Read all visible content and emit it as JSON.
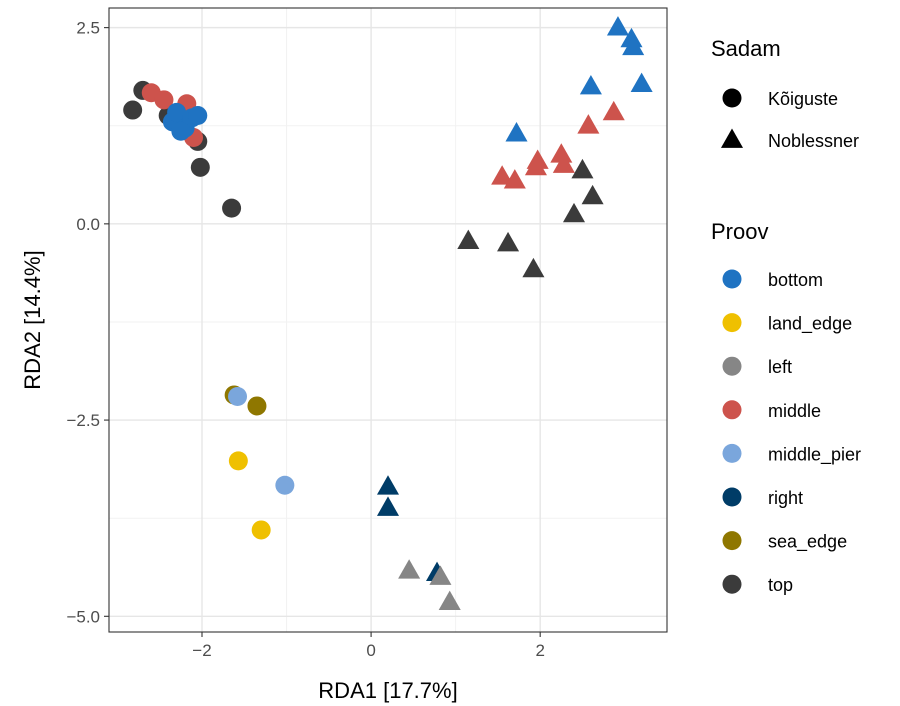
{
  "chart_data": {
    "type": "scatter",
    "xlabel": "RDA1   [17.7%]",
    "ylabel": "RDA2   [14.4%]",
    "xlim": [
      -3.1,
      3.5
    ],
    "ylim": [
      -5.2,
      2.75
    ],
    "x_ticks": [
      {
        "value": -2,
        "label": "−2"
      },
      {
        "value": 0,
        "label": "0"
      },
      {
        "value": 2,
        "label": "2"
      }
    ],
    "y_ticks": [
      {
        "value": 2.5,
        "label": "2.5"
      },
      {
        "value": 0,
        "label": "0.0"
      },
      {
        "value": -2.5,
        "label": "−2.5"
      },
      {
        "value": -5,
        "label": "−5.0"
      }
    ],
    "grid": true,
    "legend_placement": "right",
    "legends": {
      "shape": {
        "title": "Sadam",
        "items": [
          {
            "label": "Kõiguste",
            "shape": "circle"
          },
          {
            "label": "Noblessner",
            "shape": "triangle"
          }
        ]
      },
      "color": {
        "title": "Proov",
        "items": [
          {
            "label": "bottom",
            "color": "#1f73c2"
          },
          {
            "label": "land_edge",
            "color": "#efc000"
          },
          {
            "label": "left",
            "color": "#868686"
          },
          {
            "label": "middle",
            "color": "#cd534c"
          },
          {
            "label": "middle_pier",
            "color": "#7aa6dc"
          },
          {
            "label": "right",
            "color": "#003c67"
          },
          {
            "label": "sea_edge",
            "color": "#8f7700"
          },
          {
            "label": "top",
            "color": "#3b3b3b"
          }
        ]
      }
    },
    "points": [
      {
        "x": -2.82,
        "y": 1.45,
        "shape": "circle",
        "group": "top"
      },
      {
        "x": -2.7,
        "y": 1.7,
        "shape": "circle",
        "group": "top"
      },
      {
        "x": -2.4,
        "y": 1.38,
        "shape": "circle",
        "group": "top"
      },
      {
        "x": -2.05,
        "y": 1.05,
        "shape": "circle",
        "group": "top"
      },
      {
        "x": -2.02,
        "y": 0.72,
        "shape": "circle",
        "group": "top"
      },
      {
        "x": -1.65,
        "y": 0.2,
        "shape": "circle",
        "group": "top"
      },
      {
        "x": -2.6,
        "y": 1.67,
        "shape": "circle",
        "group": "middle"
      },
      {
        "x": -2.45,
        "y": 1.58,
        "shape": "circle",
        "group": "middle"
      },
      {
        "x": -2.18,
        "y": 1.53,
        "shape": "circle",
        "group": "middle"
      },
      {
        "x": -2.1,
        "y": 1.1,
        "shape": "circle",
        "group": "middle"
      },
      {
        "x": -2.35,
        "y": 1.3,
        "shape": "circle",
        "group": "bottom"
      },
      {
        "x": -2.3,
        "y": 1.42,
        "shape": "circle",
        "group": "bottom"
      },
      {
        "x": -2.2,
        "y": 1.22,
        "shape": "circle",
        "group": "bottom"
      },
      {
        "x": -2.12,
        "y": 1.35,
        "shape": "circle",
        "group": "bottom"
      },
      {
        "x": -2.05,
        "y": 1.38,
        "shape": "circle",
        "group": "bottom"
      },
      {
        "x": -2.25,
        "y": 1.18,
        "shape": "circle",
        "group": "bottom"
      },
      {
        "x": -1.62,
        "y": -2.18,
        "shape": "circle",
        "group": "sea_edge"
      },
      {
        "x": -1.35,
        "y": -2.32,
        "shape": "circle",
        "group": "sea_edge"
      },
      {
        "x": -1.58,
        "y": -2.2,
        "shape": "circle",
        "group": "middle_pier"
      },
      {
        "x": -1.02,
        "y": -3.33,
        "shape": "circle",
        "group": "middle_pier"
      },
      {
        "x": -1.57,
        "y": -3.02,
        "shape": "circle",
        "group": "land_edge"
      },
      {
        "x": -1.3,
        "y": -3.9,
        "shape": "circle",
        "group": "land_edge"
      },
      {
        "x": 2.92,
        "y": 2.5,
        "shape": "triangle",
        "group": "bottom"
      },
      {
        "x": 3.08,
        "y": 2.35,
        "shape": "triangle",
        "group": "bottom"
      },
      {
        "x": 3.1,
        "y": 2.25,
        "shape": "triangle",
        "group": "bottom"
      },
      {
        "x": 3.2,
        "y": 1.78,
        "shape": "triangle",
        "group": "bottom"
      },
      {
        "x": 2.6,
        "y": 1.75,
        "shape": "triangle",
        "group": "bottom"
      },
      {
        "x": 1.72,
        "y": 1.15,
        "shape": "triangle",
        "group": "bottom"
      },
      {
        "x": 2.87,
        "y": 1.42,
        "shape": "triangle",
        "group": "middle"
      },
      {
        "x": 2.57,
        "y": 1.25,
        "shape": "triangle",
        "group": "middle"
      },
      {
        "x": 2.25,
        "y": 0.88,
        "shape": "triangle",
        "group": "middle"
      },
      {
        "x": 2.28,
        "y": 0.75,
        "shape": "triangle",
        "group": "middle"
      },
      {
        "x": 1.97,
        "y": 0.8,
        "shape": "triangle",
        "group": "middle"
      },
      {
        "x": 1.95,
        "y": 0.72,
        "shape": "triangle",
        "group": "middle"
      },
      {
        "x": 1.55,
        "y": 0.6,
        "shape": "triangle",
        "group": "middle"
      },
      {
        "x": 1.7,
        "y": 0.55,
        "shape": "triangle",
        "group": "middle"
      },
      {
        "x": 2.5,
        "y": 0.68,
        "shape": "triangle",
        "group": "top"
      },
      {
        "x": 2.62,
        "y": 0.35,
        "shape": "triangle",
        "group": "top"
      },
      {
        "x": 2.4,
        "y": 0.12,
        "shape": "triangle",
        "group": "top"
      },
      {
        "x": 1.15,
        "y": -0.22,
        "shape": "triangle",
        "group": "top"
      },
      {
        "x": 1.62,
        "y": -0.25,
        "shape": "triangle",
        "group": "top"
      },
      {
        "x": 1.92,
        "y": -0.58,
        "shape": "triangle",
        "group": "top"
      },
      {
        "x": 0.2,
        "y": -3.35,
        "shape": "triangle",
        "group": "right"
      },
      {
        "x": 0.2,
        "y": -3.62,
        "shape": "triangle",
        "group": "right"
      },
      {
        "x": 0.78,
        "y": -4.45,
        "shape": "triangle",
        "group": "right"
      },
      {
        "x": 0.45,
        "y": -4.42,
        "shape": "triangle",
        "group": "left"
      },
      {
        "x": 0.82,
        "y": -4.5,
        "shape": "triangle",
        "group": "left"
      },
      {
        "x": 0.93,
        "y": -4.82,
        "shape": "triangle",
        "group": "left"
      }
    ]
  }
}
